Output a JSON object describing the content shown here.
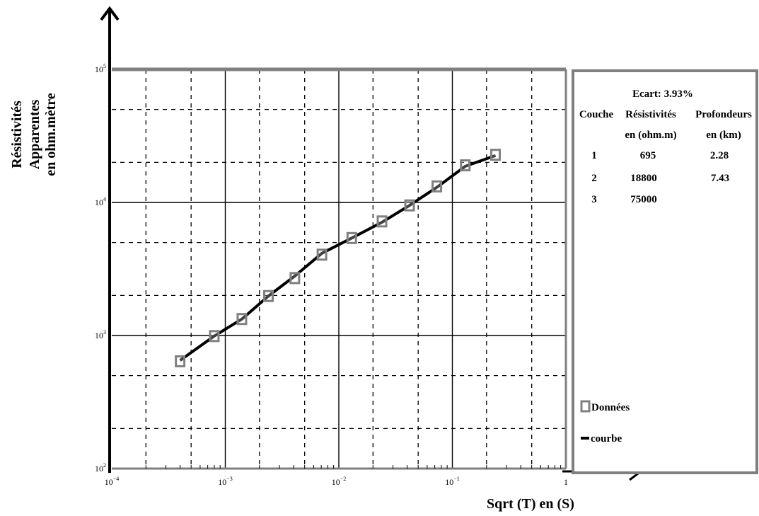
{
  "chart_data": {
    "type": "scatter",
    "ylabel_lines": [
      "Résistivités",
      "Apparentes",
      "en ohm.mètre"
    ],
    "xlabel": "Sqrt (T) en (S)",
    "xscale": "log",
    "yscale": "log",
    "xlim": [
      0.0001,
      1
    ],
    "ylim": [
      100,
      100000
    ],
    "grid": true,
    "x_tick_labels": [
      {
        "base": "10",
        "exp": "−4"
      },
      {
        "base": "10",
        "exp": "−3"
      },
      {
        "base": "10",
        "exp": "−2"
      },
      {
        "base": "10",
        "exp": "−1"
      },
      {
        "base": "1",
        "exp": ""
      }
    ],
    "y_tick_labels": [
      {
        "base": "10",
        "exp": "2"
      },
      {
        "base": "10",
        "exp": "3"
      },
      {
        "base": "10",
        "exp": "4"
      },
      {
        "base": "10",
        "exp": "5"
      }
    ],
    "series": [
      {
        "name": "Données",
        "marker": "square",
        "x": [
          0.0004,
          0.0008,
          0.0014,
          0.0024,
          0.0041,
          0.0071,
          0.013,
          0.024,
          0.042,
          0.073,
          0.13,
          0.24
        ],
        "y": [
          640,
          990,
          1330,
          1980,
          2700,
          4050,
          5400,
          7200,
          9500,
          13200,
          19000,
          22800
        ]
      },
      {
        "name": "courbe",
        "marker": "line",
        "x": [
          0.0004,
          0.0008,
          0.0014,
          0.0024,
          0.0041,
          0.0071,
          0.013,
          0.024,
          0.042,
          0.073,
          0.13,
          0.24
        ],
        "y": [
          650,
          990,
          1330,
          1980,
          2800,
          4150,
          5400,
          7100,
          9500,
          13000,
          18700,
          22500
        ]
      }
    ],
    "info_box": {
      "ecart": "Ecart: 3.93%",
      "headers": [
        "Couche",
        "Résistivités",
        "Profondeurs"
      ],
      "subheaders": [
        "",
        "en (ohm.m)",
        "en (km)"
      ],
      "rows": [
        [
          "1",
          "695",
          "2.28"
        ],
        [
          "2",
          "18800",
          "7.43"
        ],
        [
          "3",
          "75000",
          ""
        ]
      ]
    },
    "legend": {
      "placement": "bottom-right",
      "entries": [
        "Données",
        "courbe"
      ]
    },
    "colors": {
      "marker": "#808080",
      "curve": "#000000",
      "frame": "#7f7f7f",
      "grid": "#000000"
    }
  }
}
